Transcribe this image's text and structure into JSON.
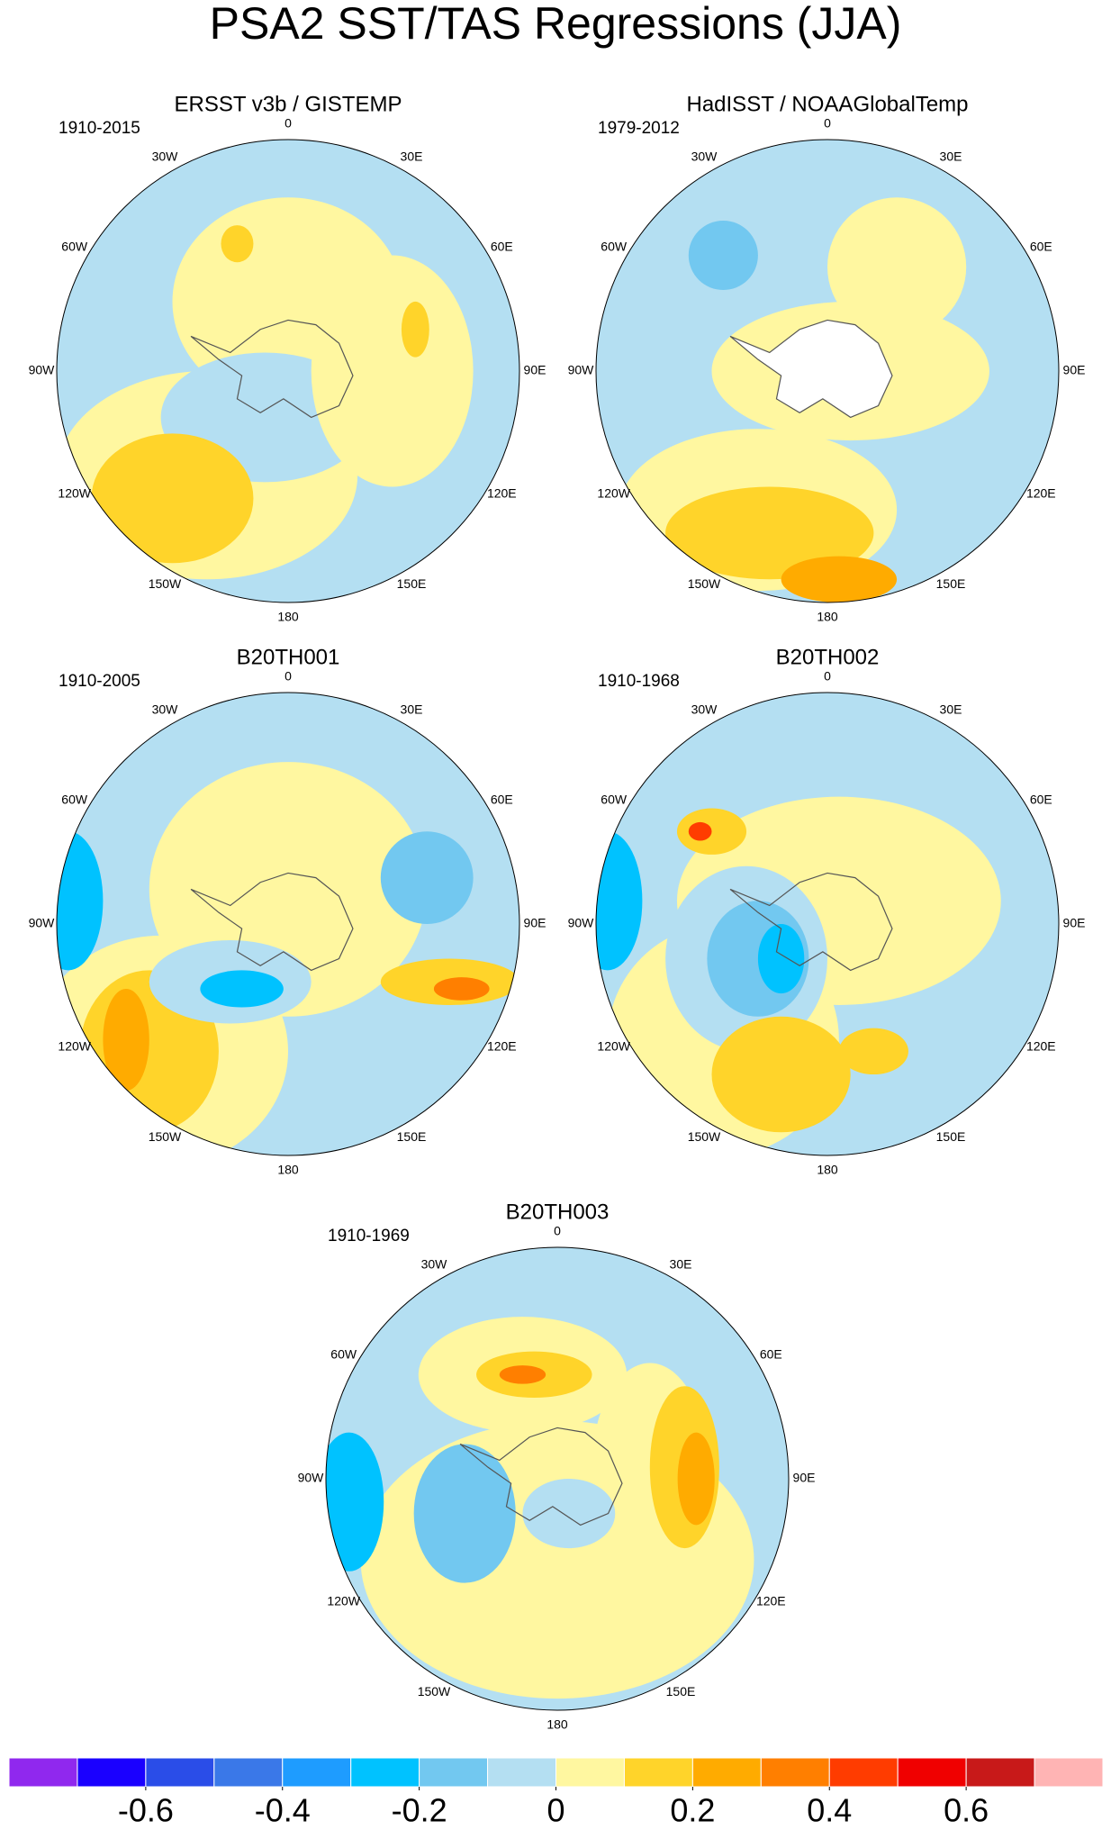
{
  "title": "PSA2 SST/TAS Regressions (JJA)",
  "longitude_labels": [
    "0",
    "30E",
    "60E",
    "90E",
    "120E",
    "150E",
    "180",
    "150W",
    "120W",
    "90W",
    "60W",
    "30W"
  ],
  "panels": [
    {
      "title": "ERSST v3b / GISTEMP",
      "period": "1910-2015"
    },
    {
      "title": "HadISST / NOAAGlobalTemp",
      "period": "1979-2012"
    },
    {
      "title": "B20TH001",
      "period": "1910-2005"
    },
    {
      "title": "B20TH002",
      "period": "1910-1968"
    },
    {
      "title": "B20TH003",
      "period": "1910-1969"
    }
  ],
  "colorbar": {
    "colors": [
      "#9028ee",
      "#1a00ff",
      "#2a4de8",
      "#3a78e8",
      "#1e9cff",
      "#00c2ff",
      "#72c8f0",
      "#b4dff2",
      "#fff7a0",
      "#ffd42a",
      "#ffab00",
      "#ff7f00",
      "#ff3c00",
      "#f00000",
      "#c81919",
      "#ffb4b4"
    ],
    "xlim": [
      -0.8,
      0.8
    ],
    "xticks": [
      -0.6,
      -0.4,
      -0.2,
      0,
      0.2,
      0.4,
      0.6
    ]
  }
}
